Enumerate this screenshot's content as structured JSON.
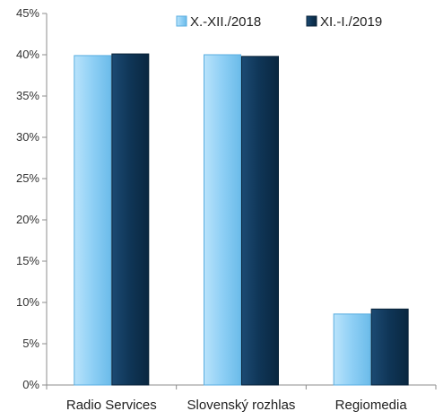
{
  "chart_data": {
    "type": "bar",
    "categories": [
      "Radio Services",
      "Slovenský rozhlas",
      "Regiomedia"
    ],
    "series": [
      {
        "name": "X.-XII./2018",
        "values": [
          39.9,
          40.0,
          8.6
        ],
        "color": "#8ecff5",
        "edge": "#5aaee0"
      },
      {
        "name": "XI.-I./2019",
        "values": [
          40.1,
          39.8,
          9.2
        ],
        "color": "#0f3556",
        "edge": "#082238"
      }
    ],
    "y_ticks": [
      "0%",
      "5%",
      "10%",
      "15%",
      "20%",
      "25%",
      "30%",
      "35%",
      "40%",
      "45%"
    ],
    "ylim": [
      0,
      45
    ],
    "y_step": 5,
    "grid": false,
    "legend_position": "top-right"
  }
}
